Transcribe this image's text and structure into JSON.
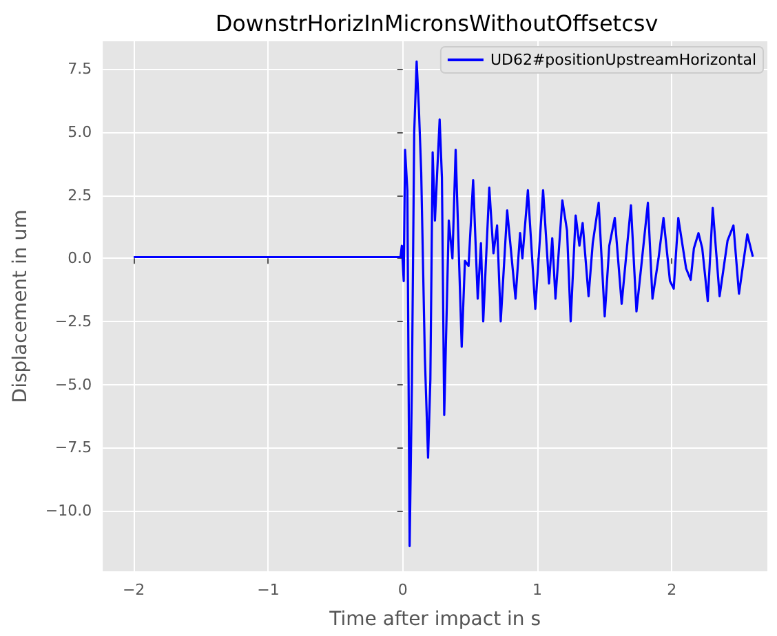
{
  "chart_data": {
    "type": "line",
    "title": "DownstrHorizInMicronsWithoutOffsetcsv",
    "xlabel": "Time after impact in s",
    "ylabel": "Displacement in um",
    "x": [
      -2,
      -1.5,
      -1,
      -0.5,
      -0.017,
      -0.007,
      0.007,
      0.017,
      0.034,
      0.051,
      0.068,
      0.085,
      0.103,
      0.12,
      0.137,
      0.164,
      0.188,
      0.205,
      0.222,
      0.239,
      0.274,
      0.291,
      0.308,
      0.325,
      0.342,
      0.369,
      0.393,
      0.438,
      0.462,
      0.489,
      0.523,
      0.557,
      0.581,
      0.598,
      0.643,
      0.674,
      0.701,
      0.728,
      0.776,
      0.838,
      0.872,
      0.889,
      0.93,
      0.985,
      1.043,
      1.087,
      1.111,
      1.135,
      1.186,
      1.221,
      1.248,
      1.285,
      1.313,
      1.337,
      1.381,
      1.412,
      1.456,
      1.501,
      1.535,
      1.576,
      1.627,
      1.696,
      1.737,
      1.771,
      1.822,
      1.856,
      1.901,
      1.938,
      1.986,
      2.014,
      2.048,
      2.106,
      2.14,
      2.164,
      2.198,
      2.226,
      2.267,
      2.304,
      2.355,
      2.414,
      2.458,
      2.499,
      2.561,
      2.602
    ],
    "series": [
      {
        "name": "UD62#positionUpstreamHorizontal",
        "color": "#0000ff",
        "values": [
          0.05,
          0.05,
          0.05,
          0.05,
          0.05,
          0.5,
          -0.9,
          4.3,
          2.7,
          -11.4,
          -4.9,
          5.0,
          7.8,
          5.9,
          3.4,
          -3.9,
          -7.9,
          -4.8,
          4.2,
          1.5,
          5.5,
          3.2,
          -6.2,
          -2.4,
          1.5,
          0,
          4.3,
          -3.5,
          -0.1,
          -0.3,
          3.1,
          -1.6,
          0.6,
          -2.5,
          2.8,
          0.2,
          1.3,
          -2.5,
          1.9,
          -1.6,
          1.0,
          0,
          2.7,
          -2.0,
          2.7,
          -1.0,
          0.8,
          -1.6,
          2.3,
          1.1,
          -2.5,
          1.7,
          0.5,
          1.4,
          -1.5,
          0.6,
          2.2,
          -2.3,
          0.5,
          1.6,
          -1.8,
          2.1,
          -2.1,
          -0.4,
          2.2,
          -1.6,
          0,
          1.6,
          -0.9,
          -1.2,
          1.6,
          -0.4,
          -0.85,
          0.4,
          1.0,
          0.4,
          -1.7,
          2.0,
          -1.5,
          0.7,
          1.3,
          -1.4,
          0.95,
          0.07
        ]
      }
    ],
    "xlim": [
      -2.23,
      2.71
    ],
    "ylim": [
      -12.4,
      8.6
    ],
    "xticks": [
      {
        "value": -2,
        "label": "−2"
      },
      {
        "value": -1,
        "label": "−1"
      },
      0,
      1,
      2
    ],
    "yticks": [
      {
        "value": -10,
        "label": "−10.0"
      },
      {
        "value": -7.5,
        "label": "−7.5"
      },
      {
        "value": -5,
        "label": "−5.0"
      },
      {
        "value": -2.5,
        "label": "−2.5"
      },
      {
        "value": 0,
        "label": "0.0"
      },
      {
        "value": 2.5,
        "label": "2.5"
      },
      {
        "value": 5,
        "label": "5.0"
      },
      {
        "value": 7.5,
        "label": "7.5"
      }
    ],
    "grid": true,
    "legend": "top right",
    "marker": "none",
    "line_style": "solid"
  }
}
